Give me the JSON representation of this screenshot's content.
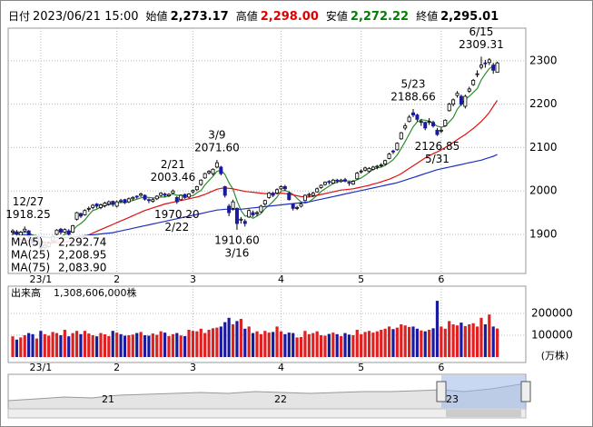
{
  "chart_data": {
    "type": "candlestick",
    "header": [
      {
        "label": "日付",
        "text": "2023/06/21 15:00",
        "color": "#000000"
      },
      {
        "label": "始値",
        "text": "2,273.17",
        "color": "#000000"
      },
      {
        "label": "高値",
        "text": "2,298.00",
        "color": "#e00000"
      },
      {
        "label": "安値",
        "text": "2,272.22",
        "color": "#008000"
      },
      {
        "label": "終値",
        "text": "2,295.01",
        "color": "#000000"
      }
    ],
    "ylim": [
      1810,
      2375
    ],
    "yticks": [
      1900,
      2000,
      2100,
      2200,
      2300
    ],
    "xticks": [
      {
        "value": 7,
        "label": "23/1"
      },
      {
        "value": 26,
        "label": "2"
      },
      {
        "value": 45,
        "label": "3"
      },
      {
        "value": 67,
        "label": "4"
      },
      {
        "value": 87,
        "label": "5"
      },
      {
        "value": 107,
        "label": "6"
      }
    ],
    "grid": true,
    "up_color": "#ffffff",
    "down_color": "#1a1aa0",
    "ohlc": [
      [
        1905,
        1912,
        1898,
        1908
      ],
      [
        1906,
        1910,
        1895,
        1900
      ],
      [
        1898,
        1908,
        1894,
        1905
      ],
      [
        1908,
        1918.25,
        1905,
        1912
      ],
      [
        1908,
        1910,
        1890,
        1895
      ],
      [
        1890,
        1893,
        1876,
        1880
      ],
      [
        1884,
        1895,
        1880,
        1891
      ],
      [
        1880,
        1882,
        1862,
        1868
      ],
      [
        1870,
        1880,
        1866,
        1875
      ],
      [
        1872,
        1884,
        1870,
        1880
      ],
      [
        1885,
        1898,
        1882,
        1895
      ],
      [
        1900,
        1912,
        1898,
        1910
      ],
      [
        1912,
        1915,
        1900,
        1905
      ],
      [
        1905,
        1914,
        1902,
        1911
      ],
      [
        1908,
        1912,
        1896,
        1900
      ],
      [
        1905,
        1922,
        1903,
        1920
      ],
      [
        1935,
        1952,
        1932,
        1950
      ],
      [
        1948,
        1950,
        1938,
        1942
      ],
      [
        1945,
        1958,
        1943,
        1955
      ],
      [
        1958,
        1964,
        1952,
        1960
      ],
      [
        1962,
        1970,
        1958,
        1967
      ],
      [
        1970,
        1972,
        1960,
        1965
      ],
      [
        1962,
        1971,
        1958,
        1968
      ],
      [
        1966,
        1975,
        1962,
        1972
      ],
      [
        1970,
        1978,
        1966,
        1975
      ],
      [
        1976,
        1978,
        1964,
        1969
      ],
      [
        1965,
        1978,
        1962,
        1975
      ],
      [
        1978,
        1982,
        1972,
        1977
      ],
      [
        1980,
        1982,
        1970,
        1973
      ],
      [
        1975,
        1985,
        1972,
        1982
      ],
      [
        1982,
        1988,
        1978,
        1985
      ],
      [
        1988,
        1990,
        1982,
        1987
      ],
      [
        1990,
        1996,
        1986,
        1993
      ],
      [
        1990,
        1992,
        1978,
        1981
      ],
      [
        1980,
        1983,
        1972,
        1978
      ],
      [
        1976,
        1984,
        1973,
        1980
      ],
      [
        1982,
        1990,
        1979,
        1988
      ],
      [
        1990,
        1997,
        1987,
        1995
      ],
      [
        1993,
        1996,
        1986,
        1990
      ],
      [
        1989,
        1995,
        1986,
        1992
      ],
      [
        1995,
        2003.46,
        1993,
        2000
      ],
      [
        1985,
        1988,
        1970.2,
        1975
      ],
      [
        1980,
        1992,
        1978,
        1990
      ],
      [
        1992,
        1994,
        1982,
        1985
      ],
      [
        1986,
        1995,
        1983,
        1993
      ],
      [
        1998,
        2003,
        1994,
        2001
      ],
      [
        2003,
        2012,
        2000,
        2010
      ],
      [
        2015,
        2027,
        2012,
        2025
      ],
      [
        2030,
        2042,
        2028,
        2040
      ],
      [
        2042,
        2048,
        2038,
        2045
      ],
      [
        2040,
        2052,
        2036,
        2050
      ],
      [
        2055,
        2071.6,
        2052,
        2065
      ],
      [
        2055,
        2058,
        2036,
        2040
      ],
      [
        2010,
        2012,
        1985,
        1990
      ],
      [
        1965,
        1970,
        1942,
        1950
      ],
      [
        1960,
        1980,
        1955,
        1975
      ],
      [
        1960,
        1962,
        1910.6,
        1925
      ],
      [
        1935,
        1940,
        1925,
        1935
      ],
      [
        1930,
        1935,
        1918,
        1925
      ],
      [
        1940,
        1958,
        1938,
        1955
      ],
      [
        1950,
        1955,
        1940,
        1945
      ],
      [
        1948,
        1954,
        1942,
        1950
      ],
      [
        1952,
        1968,
        1950,
        1965
      ],
      [
        1970,
        1980,
        1966,
        1978
      ],
      [
        1985,
        1998,
        1982,
        1995
      ],
      [
        1995,
        1998,
        1986,
        1990
      ],
      [
        1995,
        2006,
        1992,
        2003
      ],
      [
        2005,
        2013,
        2002,
        2010
      ],
      [
        2010,
        2014,
        2000,
        2005
      ],
      [
        1995,
        1998,
        1978,
        1980
      ],
      [
        1970,
        1972,
        1955,
        1960
      ],
      [
        1962,
        1966,
        1956,
        1962
      ],
      [
        1965,
        1974,
        1962,
        1970
      ],
      [
        1978,
        1992,
        1976,
        1990
      ],
      [
        1990,
        1996,
        1986,
        1992
      ],
      [
        1990,
        1998,
        1986,
        1995
      ],
      [
        1998,
        2008,
        1996,
        2005
      ],
      [
        2008,
        2015,
        2005,
        2013
      ],
      [
        2015,
        2022,
        2012,
        2020
      ],
      [
        2022,
        2025,
        2015,
        2020
      ],
      [
        2018,
        2028,
        2016,
        2025
      ],
      [
        2025,
        2028,
        2018,
        2023
      ],
      [
        2022,
        2028,
        2019,
        2025
      ],
      [
        2026,
        2030,
        2020,
        2023
      ],
      [
        2020,
        2022,
        2012,
        2018
      ],
      [
        2016,
        2025,
        2014,
        2022
      ],
      [
        2028,
        2044,
        2026,
        2041
      ],
      [
        2045,
        2050,
        2040,
        2046
      ],
      [
        2048,
        2056,
        2045,
        2053
      ],
      [
        2045,
        2055,
        2042,
        2052
      ],
      [
        2050,
        2058,
        2047,
        2055
      ],
      [
        2055,
        2060,
        2050,
        2057
      ],
      [
        2060,
        2064,
        2054,
        2060
      ],
      [
        2062,
        2072,
        2058,
        2070
      ],
      [
        2075,
        2088,
        2073,
        2085
      ],
      [
        2092,
        2095,
        2085,
        2090
      ],
      [
        2095,
        2112,
        2093,
        2110
      ],
      [
        2120,
        2136,
        2118,
        2134
      ],
      [
        2145,
        2156,
        2140,
        2150
      ],
      [
        2160,
        2175,
        2158,
        2170
      ],
      [
        2180,
        2188.66,
        2170,
        2175
      ],
      [
        2175,
        2178,
        2160,
        2165
      ],
      [
        2160,
        2166,
        2150,
        2160
      ],
      [
        2158,
        2160,
        2140,
        2145
      ],
      [
        2160,
        2168,
        2152,
        2160
      ],
      [
        2158,
        2162,
        2146,
        2150
      ],
      [
        2140,
        2145,
        2126.85,
        2130
      ],
      [
        2138,
        2146,
        2133,
        2140
      ],
      [
        2150,
        2165,
        2148,
        2163
      ],
      [
        2185,
        2203,
        2183,
        2200
      ],
      [
        2200,
        2213,
        2195,
        2210
      ],
      [
        2220,
        2230,
        2215,
        2225
      ],
      [
        2218,
        2222,
        2196,
        2200
      ],
      [
        2195,
        2222,
        2190,
        2218
      ],
      [
        2230,
        2240,
        2226,
        2235
      ],
      [
        2245,
        2258,
        2242,
        2255
      ],
      [
        2268,
        2278,
        2262,
        2270
      ],
      [
        2285,
        2309.31,
        2280,
        2290
      ],
      [
        2295,
        2302,
        2284,
        2293
      ],
      [
        2296,
        2306,
        2290,
        2302
      ],
      [
        2290,
        2295,
        2270,
        2278
      ],
      [
        2273.17,
        2298,
        2272.22,
        2295.01
      ]
    ],
    "ma": [
      {
        "name": "MA(5)",
        "legend_value": "2,292.74",
        "color": "#2e8b2e",
        "values": [
          1905,
          1904,
          1904,
          1905,
          1904,
          1898,
          1897,
          1885,
          1882,
          1880,
          1880,
          1886,
          1893,
          1900,
          1904,
          1909,
          1919,
          1925,
          1933,
          1945,
          1955,
          1958,
          1963,
          1966,
          1969,
          1970,
          1972,
          1974,
          1973,
          1976,
          1978,
          1981,
          1984,
          1986,
          1985,
          1984,
          1984,
          1986,
          1986,
          1989,
          1993,
          1990,
          1990,
          1988,
          1989,
          1989,
          1996,
          2001,
          2014,
          2024,
          2034,
          2045,
          2048,
          2038,
          2019,
          2004,
          1977,
          1955,
          1942,
          1943,
          1937,
          1942,
          1948,
          1959,
          1967,
          1976,
          1986,
          2000,
          2001,
          1998,
          1992,
          1983,
          1975,
          1972,
          1975,
          1982,
          1990,
          1999,
          2005,
          2011,
          2017,
          2020,
          2023,
          2023,
          2023,
          2022,
          2026,
          2030,
          2036,
          2043,
          2050,
          2053,
          2055,
          2059,
          2065,
          2072,
          2083,
          2098,
          2114,
          2131,
          2148,
          2159,
          2164,
          2163,
          2161,
          2156,
          2149,
          2147,
          2149,
          2159,
          2169,
          2188,
          2200,
          2211,
          2218,
          2227,
          2236,
          2256,
          2270,
          2282,
          2288,
          2292.74
        ]
      },
      {
        "name": "MA(25)",
        "legend_value": "2,208.95",
        "color": "#e01010",
        "values": [
          1890,
          1889,
          1888,
          1887,
          1886,
          1885,
          1884,
          1883,
          1882,
          1881,
          1881,
          1881,
          1882,
          1883,
          1884,
          1886,
          1889,
          1892,
          1895,
          1899,
          1903,
          1907,
          1911,
          1915,
          1919,
          1923,
          1927,
          1931,
          1935,
          1939,
          1943,
          1947,
          1951,
          1955,
          1958,
          1961,
          1964,
          1967,
          1970,
          1972,
          1974,
          1976,
          1978,
          1980,
          1982,
          1984,
          1986,
          1989,
          1992,
          1996,
          2000,
          2004,
          2006,
          2007,
          2006,
          2005,
          2003,
          2001,
          1999,
          1998,
          1997,
          1996,
          1995,
          1994,
          1994,
          1994,
          1995,
          1995,
          1994,
          1993,
          1991,
          1989,
          1987,
          1986,
          1986,
          1988,
          1990,
          1992,
          1994,
          1996,
          1998,
          2000,
          2002,
          2003,
          2004,
          2005,
          2007,
          2009,
          2011,
          2013,
          2016,
          2018,
          2021,
          2024,
          2027,
          2031,
          2035,
          2040,
          2046,
          2052,
          2058,
          2064,
          2070,
          2076,
          2081,
          2086,
          2090,
          2095,
          2100,
          2106,
          2112,
          2118,
          2124,
          2130,
          2137,
          2144,
          2152,
          2160,
          2170,
          2181,
          2195,
          2208.95
        ]
      },
      {
        "name": "MA(75)",
        "legend_value": "2,083.90",
        "color": "#2030c0",
        "values": [
          1902,
          1901,
          1900,
          1899,
          1898,
          1897,
          1896,
          1895,
          1894,
          1893,
          1893,
          1893,
          1893,
          1893,
          1893,
          1894,
          1895,
          1896,
          1897,
          1898,
          1899,
          1900,
          1901,
          1902,
          1903,
          1904,
          1906,
          1908,
          1910,
          1912,
          1914,
          1916,
          1918,
          1920,
          1922,
          1924,
          1926,
          1928,
          1930,
          1932,
          1934,
          1936,
          1938,
          1940,
          1942,
          1944,
          1946,
          1948,
          1950,
          1952,
          1954,
          1956,
          1957,
          1958,
          1958,
          1958,
          1958,
          1958,
          1959,
          1960,
          1961,
          1962,
          1963,
          1964,
          1965,
          1966,
          1967,
          1968,
          1969,
          1970,
          1971,
          1972,
          1973,
          1974,
          1975,
          1977,
          1979,
          1981,
          1983,
          1985,
          1987,
          1989,
          1991,
          1993,
          1995,
          1997,
          1999,
          2001,
          2003,
          2005,
          2007,
          2009,
          2011,
          2013,
          2015,
          2017,
          2019,
          2022,
          2025,
          2028,
          2031,
          2034,
          2037,
          2040,
          2043,
          2046,
          2049,
          2051,
          2053,
          2055,
          2057,
          2059,
          2061,
          2063,
          2065,
          2067,
          2069,
          2071,
          2074,
          2077,
          2080,
          2083.9
        ]
      }
    ],
    "annotations": [
      {
        "date": "12/27",
        "value": 1918.25,
        "label": "1918.25",
        "kind": "high"
      },
      {
        "date": "2/21",
        "value": 2003.46,
        "label": "2003.46",
        "kind": "high"
      },
      {
        "date": "2/22",
        "value": 1970.2,
        "label": "1970.20",
        "kind": "low"
      },
      {
        "date": "3/9",
        "value": 2071.6,
        "label": "2071.60",
        "kind": "high"
      },
      {
        "date": "3/16",
        "value": 1910.6,
        "label": "1910.60",
        "kind": "low"
      },
      {
        "date": "5/23",
        "value": 2188.66,
        "label": "2188.66",
        "kind": "high"
      },
      {
        "date": "5/31",
        "value": 2126.85,
        "label": "2126.85",
        "kind": "low"
      },
      {
        "date": "6/15",
        "value": 2309.31,
        "label": "2309.31",
        "kind": "high"
      }
    ],
    "volume": {
      "title": "出来高",
      "total": "1,308,606,000株",
      "unit": "(万株)",
      "ylim": [
        0,
        300000
      ],
      "yticks": [
        100000,
        200000
      ],
      "up_color": "#e02020",
      "down_color": "#1a1aa0",
      "values": [
        95000,
        80000,
        90000,
        100000,
        110000,
        105000,
        85000,
        120000,
        105000,
        98000,
        115000,
        110000,
        100000,
        125000,
        95000,
        110000,
        120000,
        105000,
        120000,
        108000,
        100000,
        95000,
        110000,
        104000,
        96000,
        120000,
        112000,
        105000,
        98000,
        100000,
        103000,
        110000,
        115000,
        100000,
        98000,
        108000,
        102000,
        118000,
        112000,
        96000,
        105000,
        110000,
        99000,
        96000,
        125000,
        120000,
        118000,
        130000,
        110000,
        125000,
        132000,
        135000,
        140000,
        160000,
        180000,
        150000,
        165000,
        175000,
        130000,
        140000,
        110000,
        118000,
        105000,
        120000,
        112000,
        115000,
        140000,
        118000,
        105000,
        112000,
        110000,
        90000,
        92000,
        120000,
        105000,
        110000,
        118000,
        100000,
        98000,
        106000,
        112000,
        105000,
        96000,
        110000,
        103000,
        100000,
        125000,
        105000,
        115000,
        120000,
        112000,
        118000,
        125000,
        130000,
        140000,
        128000,
        135000,
        150000,
        145000,
        138000,
        140000,
        130000,
        122000,
        118000,
        125000,
        132000,
        258000,
        140000,
        130000,
        165000,
        150000,
        145000,
        158000,
        142000,
        150000,
        155000,
        140000,
        180000,
        150000,
        195000,
        140000,
        130861
      ]
    },
    "navigator": {
      "labels": [
        "21",
        "22",
        "23"
      ]
    }
  }
}
